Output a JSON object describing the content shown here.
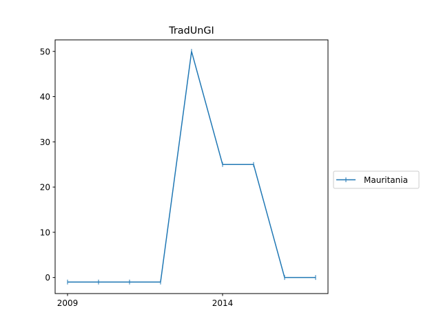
{
  "chart_data": {
    "type": "line",
    "title": "TradUnGI",
    "xlabel": "",
    "ylabel": "",
    "x": [
      2009,
      2010,
      2011,
      2012,
      2013,
      2014,
      2015,
      2016,
      2017
    ],
    "xticks": [
      2009,
      2014
    ],
    "xtick_labels": [
      "2009",
      "2014"
    ],
    "yticks": [
      0,
      10,
      20,
      30,
      40,
      50
    ],
    "ytick_labels": [
      "0",
      "10",
      "20",
      "30",
      "40",
      "50"
    ],
    "xlim": [
      2008.6,
      2017.4
    ],
    "ylim": [
      -3.55,
      52.55
    ],
    "grid": false,
    "legend_position": "center-right, outside plot",
    "series": [
      {
        "name": "Mauritania",
        "color": "#1f77b4",
        "marker": "vertical-line",
        "values": [
          -1,
          -1,
          -1,
          -1,
          50,
          25,
          25,
          0,
          0
        ]
      }
    ]
  }
}
